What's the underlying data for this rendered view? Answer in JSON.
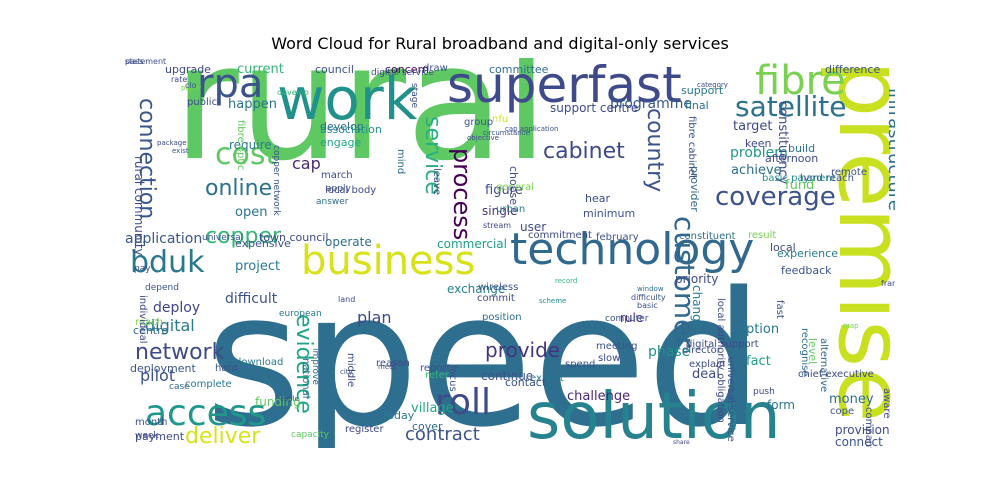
{
  "title": "Word Cloud for Rural broadband and digital-only services",
  "words": [
    {
      "text": "speed",
      "color": "#2e6e8e"
    },
    {
      "text": "rural",
      "color": "#5ec962"
    },
    {
      "text": "work",
      "color": "#21918c"
    },
    {
      "text": "premise",
      "color": "#c8e020"
    },
    {
      "text": "solution",
      "color": "#26828e"
    },
    {
      "text": "superfast",
      "color": "#3e4a89"
    },
    {
      "text": "technology",
      "color": "#31688e"
    },
    {
      "text": "business",
      "color": "#d8e219"
    },
    {
      "text": "rpa",
      "color": "#3b528b"
    },
    {
      "text": "fibre",
      "color": "#7ad151"
    },
    {
      "text": "access",
      "color": "#1f988b"
    },
    {
      "text": "cost",
      "color": "#5ec962"
    },
    {
      "text": "satellite",
      "color": "#2c728e"
    },
    {
      "text": "bduk",
      "color": "#2a788e"
    },
    {
      "text": "roll",
      "color": "#3e4a89"
    },
    {
      "text": "connection",
      "color": "#39568c"
    },
    {
      "text": "coverage",
      "color": "#3b528b"
    },
    {
      "text": "copper",
      "color": "#35b779"
    },
    {
      "text": "online",
      "color": "#2c728e"
    },
    {
      "text": "deliver",
      "color": "#d8e219"
    },
    {
      "text": "network",
      "color": "#3e4a89"
    },
    {
      "text": "cabinet",
      "color": "#3e4989"
    },
    {
      "text": "customer",
      "color": "#31688e"
    },
    {
      "text": "country",
      "color": "#3b528b"
    },
    {
      "text": "infrastructure",
      "color": "#2c728e"
    },
    {
      "text": "process",
      "color": "#440154"
    },
    {
      "text": "service",
      "color": "#29af7f"
    },
    {
      "text": "contract",
      "color": "#3b528b"
    },
    {
      "text": "evidence",
      "color": "#20a386"
    },
    {
      "text": "provide",
      "color": "#46337e"
    },
    {
      "text": "application",
      "color": "#39568c"
    },
    {
      "text": "plan",
      "color": "#3e4a89"
    },
    {
      "text": "phase",
      "color": "#21918c"
    },
    {
      "text": "programme",
      "color": "#38598c"
    },
    {
      "text": "problem",
      "color": "#1f988b"
    },
    {
      "text": "achieve",
      "color": "#2e6e8e"
    },
    {
      "text": "fund",
      "color": "#5ec962"
    },
    {
      "text": "target",
      "color": "#3e4a89"
    },
    {
      "text": "cap",
      "color": "#482878"
    },
    {
      "text": "digital",
      "color": "#2a788e"
    },
    {
      "text": "pilot",
      "color": "#3b528b"
    },
    {
      "text": "deploy",
      "color": "#414487"
    },
    {
      "text": "project",
      "color": "#2a788e"
    },
    {
      "text": "rural community",
      "color": "#3e4a89"
    },
    {
      "text": "current",
      "color": "#35b779"
    },
    {
      "text": "money",
      "color": "#2e6e8e"
    },
    {
      "text": "village",
      "color": "#22a884"
    },
    {
      "text": "open",
      "color": "#2c728e"
    },
    {
      "text": "happen",
      "color": "#2c728e"
    },
    {
      "text": "develop",
      "color": "#31688e"
    },
    {
      "text": "engage",
      "color": "#20a486"
    },
    {
      "text": "require",
      "color": "#2a788e"
    },
    {
      "text": "exchange",
      "color": "#26828e"
    },
    {
      "text": "commercial",
      "color": "#1f9e89"
    },
    {
      "text": "constituency",
      "color": "#3e4a89"
    },
    {
      "text": "continue",
      "color": "#3b528b"
    },
    {
      "text": "difficult",
      "color": "#3b528b"
    },
    {
      "text": "challenge",
      "color": "#482878"
    },
    {
      "text": "option",
      "color": "#2a788e"
    },
    {
      "text": "fact",
      "color": "#1f9e89"
    },
    {
      "text": "form",
      "color": "#2c728e"
    },
    {
      "text": "priority",
      "color": "#3e4a89"
    },
    {
      "text": "single",
      "color": "#453882"
    },
    {
      "text": "figure",
      "color": "#3e4a89"
    },
    {
      "text": "change",
      "color": "#2a788e"
    },
    {
      "text": "rule",
      "color": "#482878"
    },
    {
      "text": "operate",
      "color": "#2e6e8e"
    },
    {
      "text": "deployment",
      "color": "#3b528b"
    },
    {
      "text": "deal",
      "color": "#3e4a89"
    },
    {
      "text": "expensive",
      "color": "#3b528b"
    },
    {
      "text": "user",
      "color": "#3e4a89"
    },
    {
      "text": "funding",
      "color": "#5ec962"
    },
    {
      "text": "basic payment",
      "color": "#21918c"
    },
    {
      "text": "upgrade",
      "color": "#3e4a89"
    },
    {
      "text": "council",
      "color": "#3b528b"
    },
    {
      "text": "committee",
      "color": "#2e6e8e"
    },
    {
      "text": "concern",
      "color": "#440154"
    },
    {
      "text": "support centre",
      "color": "#3e4a89"
    },
    {
      "text": "final",
      "color": "#2c728e"
    },
    {
      "text": "cover",
      "color": "#31688e"
    },
    {
      "text": "provision",
      "color": "#3e4a89"
    },
    {
      "text": "connect",
      "color": "#3b528b"
    },
    {
      "text": "payment",
      "color": "#3e4a89"
    },
    {
      "text": "month",
      "color": "#3b528b"
    },
    {
      "text": "today",
      "color": "#2a788e"
    },
    {
      "text": "town council",
      "color": "#3e4a89"
    },
    {
      "text": "centre",
      "color": "#2e6e8e"
    },
    {
      "text": "reach",
      "color": "#7ad151"
    },
    {
      "text": "individual",
      "color": "#3e4a89"
    },
    {
      "text": "case",
      "color": "#31688e"
    },
    {
      "text": "association",
      "color": "#21918c"
    },
    {
      "text": "hear",
      "color": "#3e4a89"
    },
    {
      "text": "minimum",
      "color": "#3b528b"
    },
    {
      "text": "choose",
      "color": "#3e4a89"
    },
    {
      "text": "provider",
      "color": "#31688e"
    },
    {
      "text": "experience",
      "color": "#2a788e"
    },
    {
      "text": "feedback",
      "color": "#3b528b"
    },
    {
      "text": "alternative",
      "color": "#31688e"
    },
    {
      "text": "recognise",
      "color": "#2e6e8e"
    },
    {
      "text": "chief executive",
      "color": "#3e4a89"
    },
    {
      "text": "level",
      "color": "#5ec962"
    },
    {
      "text": "hard reach",
      "color": "#3b528b"
    },
    {
      "text": "keen",
      "color": "#3e4a89"
    },
    {
      "text": "build",
      "color": "#2c728e"
    },
    {
      "text": "remote",
      "color": "#3b528b"
    },
    {
      "text": "difference",
      "color": "#3b528b"
    },
    {
      "text": "support",
      "color": "#2a788e"
    },
    {
      "text": "afternoon",
      "color": "#3e4a89"
    },
    {
      "text": "local",
      "color": "#3e4a89"
    },
    {
      "text": "result",
      "color": "#7ad151"
    },
    {
      "text": "constituent",
      "color": "#2e6e8e"
    },
    {
      "text": "february",
      "color": "#3b528b"
    },
    {
      "text": "commitment",
      "color": "#3e4a89"
    },
    {
      "text": "wireless",
      "color": "#3b528b"
    },
    {
      "text": "commit",
      "color": "#3e4a89"
    },
    {
      "text": "position",
      "color": "#2e6e8e"
    },
    {
      "text": "meeting",
      "color": "#3b528b"
    },
    {
      "text": "slow",
      "color": "#3e4a89"
    },
    {
      "text": "spend",
      "color": "#3b528b"
    },
    {
      "text": "explain",
      "color": "#3e4a89"
    },
    {
      "text": "director",
      "color": "#3e4a89"
    },
    {
      "text": "expect",
      "color": "#2a788e"
    },
    {
      "text": "contact",
      "color": "#3b528b"
    },
    {
      "text": "register",
      "color": "#3e4a89"
    },
    {
      "text": "capacity",
      "color": "#5ec962"
    },
    {
      "text": "refer",
      "color": "#35b779"
    },
    {
      "text": "report",
      "color": "#3b528b"
    },
    {
      "text": "national",
      "color": "#2e6e8e"
    },
    {
      "text": "reason",
      "color": "#3e4a89"
    },
    {
      "text": "focus",
      "color": "#3b528b"
    },
    {
      "text": "middle",
      "color": "#3e4a89"
    },
    {
      "text": "complete",
      "color": "#2a788e"
    },
    {
      "text": "week",
      "color": "#3e4a89"
    },
    {
      "text": "hard",
      "color": "#3b528b"
    },
    {
      "text": "pay",
      "color": "#3e4a89"
    },
    {
      "text": "universal",
      "color": "#3b528b"
    },
    {
      "text": "public",
      "color": "#3e4a89"
    },
    {
      "text": "mind",
      "color": "#2e6e8e"
    },
    {
      "text": "leave",
      "color": "#3e4a89"
    },
    {
      "text": "fibre cabinet",
      "color": "#3b528b"
    },
    {
      "text": "local authority obligation",
      "color": "#3e4a89"
    },
    {
      "text": "universal service",
      "color": "#3b528b"
    },
    {
      "text": "digital support",
      "color": "#3e4a89"
    },
    {
      "text": "company",
      "color": "#3e4a89"
    },
    {
      "text": "cope",
      "color": "#3b528b"
    },
    {
      "text": "aware",
      "color": "#3e4a89"
    },
    {
      "text": "group",
      "color": "#3b528b"
    },
    {
      "text": "nfu",
      "color": "#d8e219"
    },
    {
      "text": "urban",
      "color": "#2a788e"
    },
    {
      "text": "general",
      "color": "#7ad151"
    },
    {
      "text": "draw",
      "color": "#3b528b"
    },
    {
      "text": "march",
      "color": "#3e4a89"
    },
    {
      "text": "local body",
      "color": "#3e4a89"
    },
    {
      "text": "answer",
      "color": "#2e6e8e"
    },
    {
      "text": "depend",
      "color": "#3b528b"
    },
    {
      "text": "improve",
      "color": "#31688e"
    },
    {
      "text": "fibre optic",
      "color": "#5ec962"
    },
    {
      "text": "download",
      "color": "#2a788e"
    },
    {
      "text": "european",
      "color": "#2a788e"
    },
    {
      "text": "apply",
      "color": "#3e4a89"
    },
    {
      "text": "develop",
      "color": "#35b779"
    },
    {
      "text": "copper network",
      "color": "#3b528b"
    },
    {
      "text": "digital service",
      "color": "#3e4a89"
    },
    {
      "text": "stage",
      "color": "#3b528b"
    },
    {
      "text": "paper",
      "color": "#7ad151"
    },
    {
      "text": "cable",
      "color": "#3b528b"
    },
    {
      "text": "meet",
      "color": "#3e4a89"
    },
    {
      "text": "city",
      "color": "#3b528b"
    },
    {
      "text": "share",
      "color": "#3e4a89"
    },
    {
      "text": "window",
      "color": "#2e6e8e"
    },
    {
      "text": "basic",
      "color": "#3b528b"
    },
    {
      "text": "land",
      "color": "#3e4a89"
    },
    {
      "text": "computer",
      "color": "#3b528b"
    },
    {
      "text": "push",
      "color": "#3e4a89"
    },
    {
      "text": "fast",
      "color": "#3b528b"
    },
    {
      "text": "map",
      "color": "#7ad151"
    },
    {
      "text": "record",
      "color": "#35b779"
    },
    {
      "text": "scheme",
      "color": "#21918c"
    },
    {
      "text": "objective",
      "color": "#3e4a89"
    },
    {
      "text": "circumstance",
      "color": "#3b528b"
    },
    {
      "text": "stream",
      "color": "#3e4a89"
    },
    {
      "text": "difficulty",
      "color": "#3b528b"
    },
    {
      "text": "framework",
      "color": "#3e4a89"
    },
    {
      "text": "cap application",
      "color": "#3b528b"
    },
    {
      "text": "category",
      "color": "#3e4a89"
    },
    {
      "text": "clo",
      "color": "#3b528b"
    },
    {
      "text": "rate",
      "color": "#3e4a89"
    },
    {
      "text": "exist",
      "color": "#3b528b"
    },
    {
      "text": "package",
      "color": "#3e4a89"
    },
    {
      "text": "statement",
      "color": "#3b528b"
    },
    {
      "text": "pass",
      "color": "#3e4a89"
    }
  ]
}
